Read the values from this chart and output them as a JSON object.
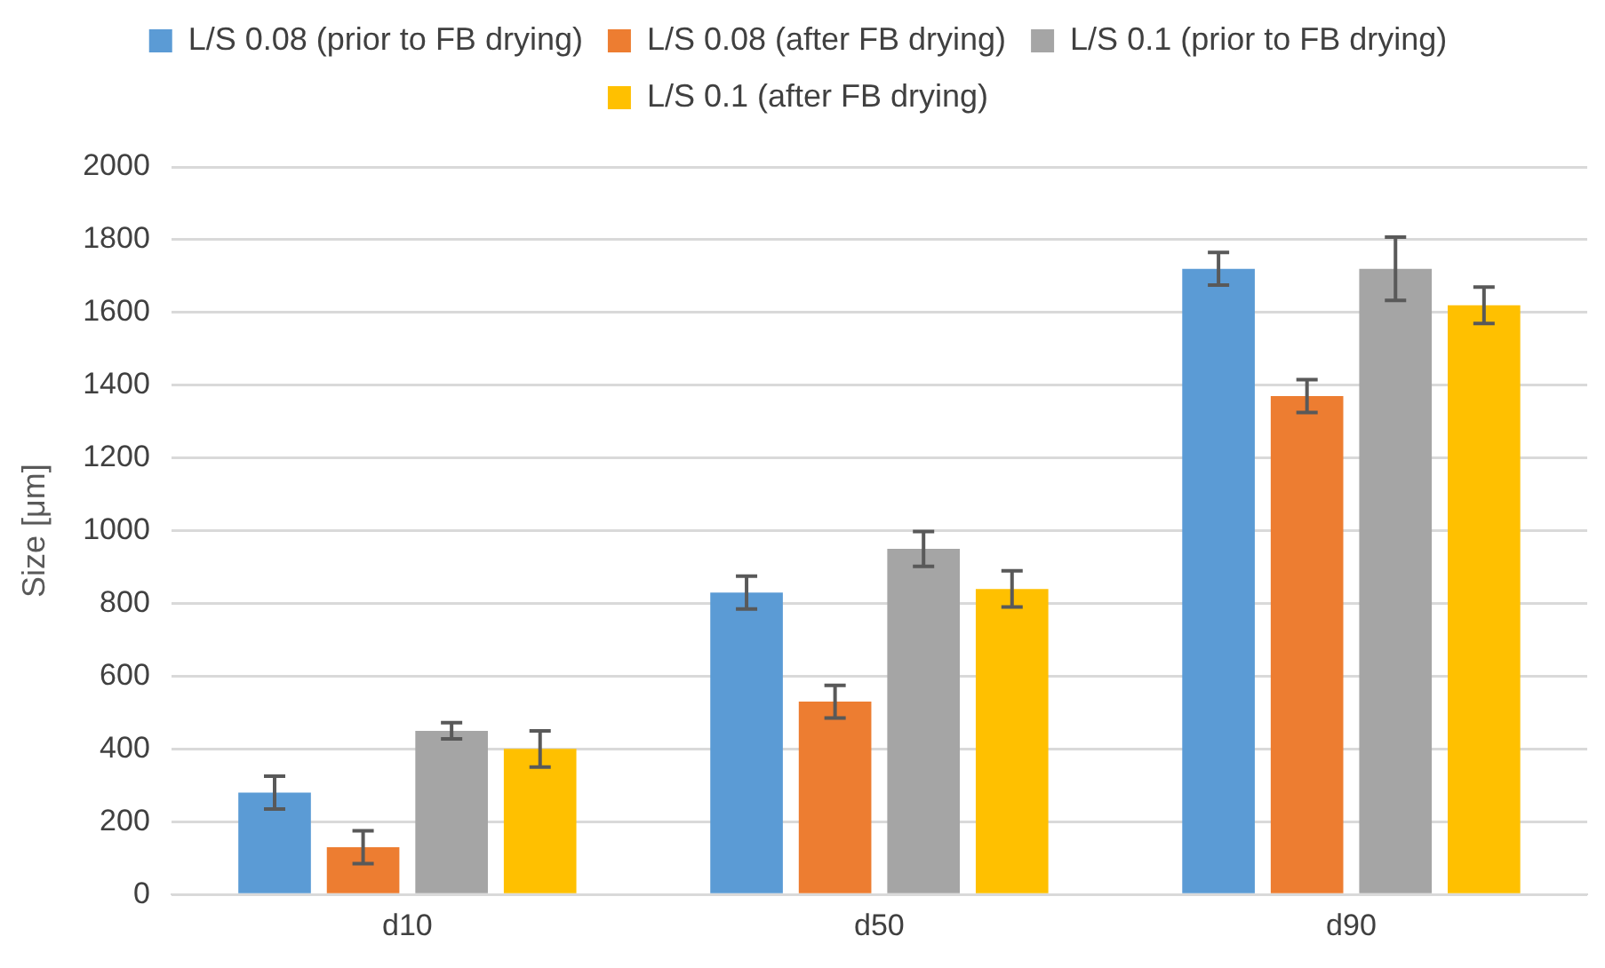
{
  "chart_data": {
    "type": "bar",
    "ylabel": "Size [μm]",
    "categories": [
      "d10",
      "d50",
      "d90"
    ],
    "series": [
      {
        "name": "L/S 0.08 (prior to FB drying)",
        "color": "#5b9bd5",
        "values": [
          280,
          830,
          1720
        ],
        "errors": [
          45,
          45,
          45
        ]
      },
      {
        "name": "L/S 0.08 (after FB drying)",
        "color": "#ed7d31",
        "values": [
          130,
          530,
          1370
        ],
        "errors": [
          45,
          45,
          45
        ]
      },
      {
        "name": "L/S 0.1 (prior to FB drying)",
        "color": "#a5a5a5",
        "values": [
          450,
          950,
          1720
        ],
        "errors": [
          22,
          48,
          87
        ]
      },
      {
        "name": "L/S 0.1 (after FB drying)",
        "color": "#ffc000",
        "values": [
          400,
          840,
          1620
        ],
        "errors": [
          50,
          50,
          50
        ]
      }
    ],
    "ylim": [
      0,
      2000
    ],
    "yticks": [
      0,
      200,
      400,
      600,
      800,
      1000,
      1200,
      1400,
      1600,
      1800,
      2000
    ],
    "grid": "y",
    "legend": "top"
  }
}
